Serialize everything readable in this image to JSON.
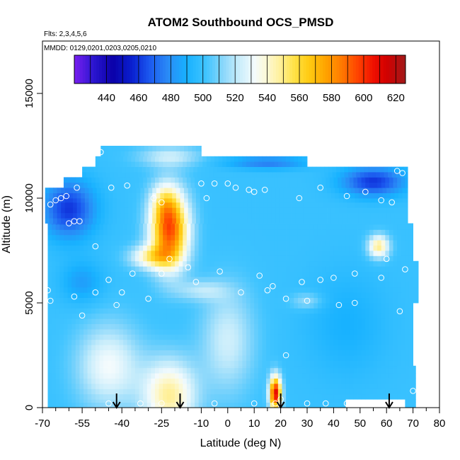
{
  "chart_data": {
    "type": "heatmap",
    "title": "ATOM2 Southbound OCS_PMSD",
    "subtitle_lines": [
      "Flts: 2,3,4,5,6",
      "MMDD: 0129,0201,0203,0205,0210"
    ],
    "xlabel": "Latitude (deg N)",
    "ylabel": "Altitude (m)",
    "xlim": [
      -70,
      80
    ],
    "ylim": [
      0,
      17500
    ],
    "xticks": [
      -70,
      -55,
      -40,
      -25,
      -10,
      0,
      10,
      20,
      30,
      40,
      50,
      60,
      70,
      80
    ],
    "xtick_labels": [
      "-70",
      "-55",
      "-40",
      "-25",
      "-10",
      "0",
      "10",
      "20",
      "30",
      "40",
      "50",
      "60",
      "70",
      "80"
    ],
    "xminor": [
      -65,
      -60,
      -50,
      -45,
      -35,
      -30,
      -20,
      -15,
      -5,
      5,
      15,
      25,
      35,
      45,
      55,
      65,
      75
    ],
    "yticks": [
      0,
      5000,
      10000,
      15000
    ],
    "ytick_labels": [
      "0",
      "5000",
      "10000",
      "15000"
    ],
    "colorbar": {
      "min": 420,
      "max": 626,
      "ticks": [
        440,
        460,
        480,
        500,
        520,
        540,
        560,
        580,
        600,
        620
      ],
      "tick_labels": [
        "440",
        "460",
        "480",
        "500",
        "520",
        "540",
        "560",
        "580",
        "600",
        "620"
      ],
      "stops": [
        [
          420,
          "#7a1ff0"
        ],
        [
          432,
          "#2a16d0"
        ],
        [
          444,
          "#0a00a8"
        ],
        [
          456,
          "#0a20d0"
        ],
        [
          466,
          "#1a55ee"
        ],
        [
          478,
          "#2a8af6"
        ],
        [
          490,
          "#18b2ff"
        ],
        [
          502,
          "#40c4ff"
        ],
        [
          512,
          "#86d6fb"
        ],
        [
          522,
          "#c6ecfb"
        ],
        [
          532,
          "#f4fbfd"
        ],
        [
          540,
          "#fcf8d2"
        ],
        [
          548,
          "#fff09a"
        ],
        [
          556,
          "#ffe34c"
        ],
        [
          566,
          "#ffcb12"
        ],
        [
          576,
          "#ffa500"
        ],
        [
          586,
          "#ff7b00"
        ],
        [
          596,
          "#ff4500"
        ],
        [
          606,
          "#f01000"
        ],
        [
          614,
          "#d20000"
        ],
        [
          626,
          "#a21a1a"
        ]
      ]
    },
    "arrows_x": [
      -42,
      -18,
      20,
      61
    ],
    "grid": false,
    "colorbar_placement": "top-inside"
  }
}
